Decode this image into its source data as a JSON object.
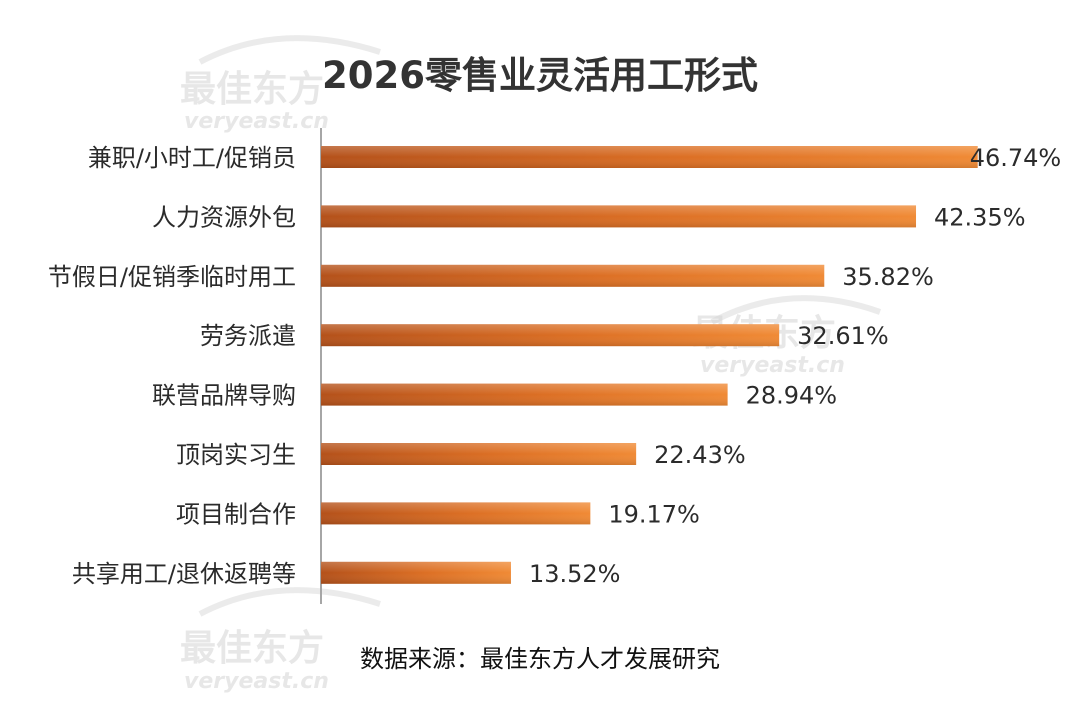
{
  "chart_data": {
    "type": "bar",
    "orientation": "horizontal",
    "title": "2026零售业灵活用工形式",
    "categories": [
      "兼职/小时工/促销员",
      "人力资源外包",
      "节假日/促销季临时用工",
      "劳务派遣",
      "联营品牌导购",
      "顶岗实习生",
      "项目制合作",
      "共享用工/退休返聘等"
    ],
    "values": [
      46.74,
      42.35,
      35.82,
      32.61,
      28.94,
      22.43,
      19.17,
      13.52
    ],
    "value_labels": [
      "46.74%",
      "42.35%",
      "35.82%",
      "32.61%",
      "28.94%",
      "22.43%",
      "19.17%",
      "13.52%"
    ],
    "unit": "%",
    "xlim": [
      0,
      50
    ],
    "grid": false,
    "legend": "none",
    "bar_color": "#e0782a",
    "source_note": "数据来源：最佳东方人才发展研究"
  },
  "watermark": {
    "brand": "最佳东方",
    "domain": "veryeast.cn"
  }
}
